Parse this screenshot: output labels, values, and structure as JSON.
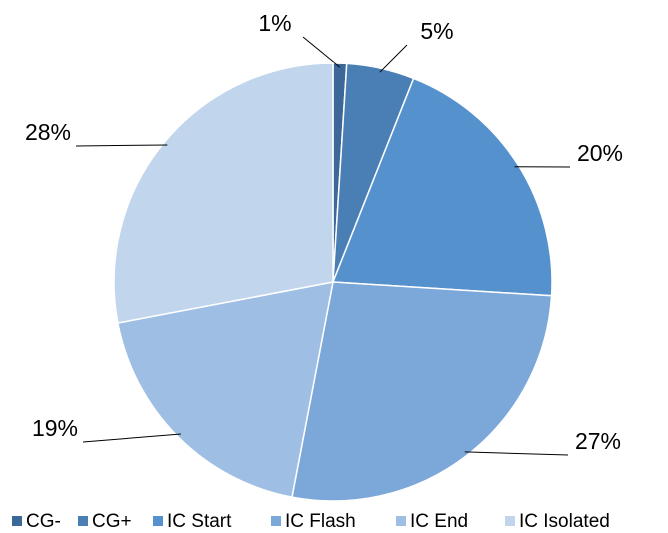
{
  "chart_data": {
    "type": "pie",
    "categories": [
      "CG-",
      "CG+",
      "IC Start",
      "IC Flash",
      "IC End",
      "IC Isolated"
    ],
    "values": [
      1,
      5,
      20,
      27,
      19,
      28
    ],
    "value_labels": [
      "1%",
      "5%",
      "20%",
      "27%",
      "19%",
      "28%"
    ],
    "colors": [
      "#3b6898",
      "#4a7fb6",
      "#5591cd",
      "#7ba7d9",
      "#9ebee4",
      "#c1d5ed"
    ],
    "legend": "bottom"
  }
}
